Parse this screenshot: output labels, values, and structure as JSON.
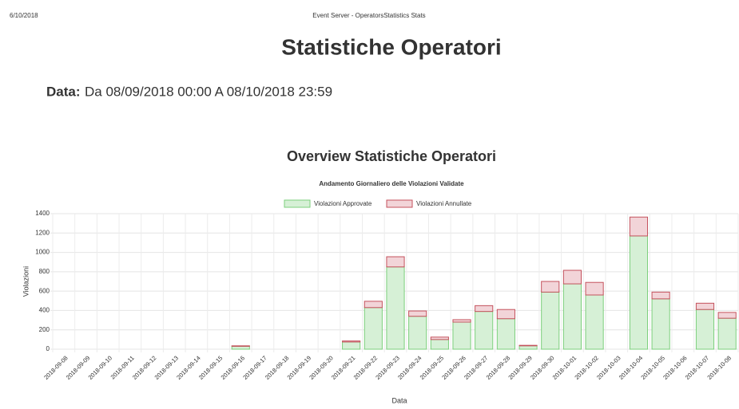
{
  "header": {
    "date": "6/10/2018",
    "page_title": "Event Server - OperatorsStatistics Stats",
    "title": "Statistiche Operatori",
    "range_label": "Data:",
    "range": "Da 08/09/2018 00:00 A 08/10/2018 23:59"
  },
  "chart_data": {
    "type": "stacked_bar",
    "title": "Overview Statistiche Operatori",
    "subtitle": "Andamento Giornaliero delle Violazioni Validate",
    "y_label": "Violazioni",
    "x_label": "Data",
    "categories": [
      "2018-09-08",
      "2018-09-09",
      "2018-09-10",
      "2018-09-11",
      "2018-09-12",
      "2018-09-13",
      "2018-09-14",
      "2018-09-15",
      "2018-09-16",
      "2018-09-17",
      "2018-09-18",
      "2018-09-19",
      "2018-09-20",
      "2018-09-21",
      "2018-09-22",
      "2018-09-23",
      "2018-09-24",
      "2018-09-25",
      "2018-09-26",
      "2018-09-27",
      "2018-09-28",
      "2018-09-29",
      "2018-09-30",
      "2018-10-01",
      "2018-10-02",
      "2018-10-03",
      "2018-10-04",
      "2018-10-05",
      "2018-10-06",
      "2018-10-07",
      "2018-10-08"
    ],
    "series": [
      {
        "name": "Violazioni Approvate",
        "color": "#d6f0d6",
        "stroke": "#7ccf7c",
        "values": [
          0,
          0,
          0,
          0,
          0,
          0,
          0,
          0,
          30,
          0,
          0,
          0,
          0,
          75,
          430,
          850,
          340,
          100,
          280,
          390,
          315,
          35,
          590,
          675,
          560,
          0,
          1170,
          520,
          0,
          410,
          320
        ]
      },
      {
        "name": "Violazioni Annullate",
        "color": "#f2d4d8",
        "stroke": "#c4525d",
        "values": [
          0,
          0,
          0,
          0,
          0,
          0,
          0,
          0,
          5,
          0,
          0,
          0,
          0,
          10,
          65,
          105,
          55,
          25,
          25,
          60,
          95,
          5,
          110,
          140,
          130,
          0,
          195,
          70,
          0,
          65,
          60
        ]
      }
    ],
    "ylim": [
      0,
      1400
    ],
    "yticks": [
      0,
      200,
      400,
      600,
      800,
      1000,
      1200,
      1400
    ],
    "grid": true
  }
}
